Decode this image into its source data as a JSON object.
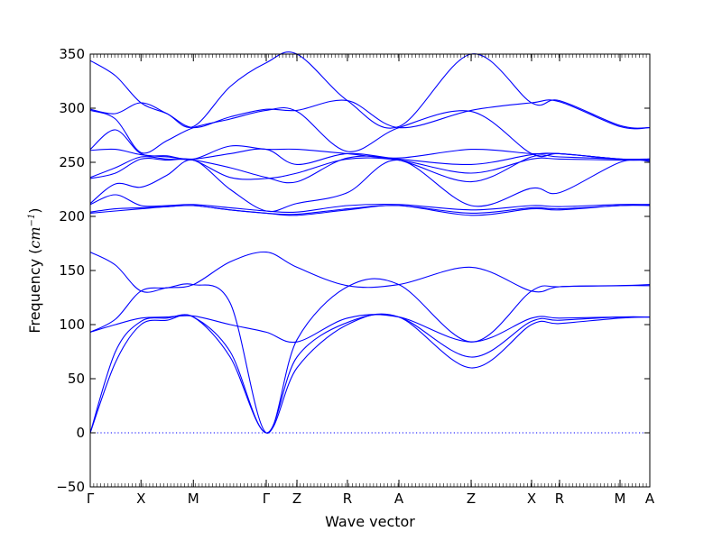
{
  "chart_data": {
    "type": "line",
    "title": "",
    "xlabel": "Wave vector",
    "ylabel_main": "Frequency (",
    "ylabel_unit_base": "cm",
    "ylabel_unit_exp": "−1",
    "ylabel_close": ")",
    "ylim": [
      -50,
      350
    ],
    "yticks": [
      -50,
      0,
      50,
      100,
      150,
      200,
      250,
      300,
      350
    ],
    "xlim": [
      0,
      1
    ],
    "grid": false,
    "line_color": "#0000ff",
    "kpoints": [
      {
        "label": "Γ",
        "x": 0.0
      },
      {
        "label": "X",
        "x": 0.0907
      },
      {
        "label": "M",
        "x": 0.1843
      },
      {
        "label": "Γ",
        "x": 0.3145
      },
      {
        "label": "Z",
        "x": 0.3694
      },
      {
        "label": "R",
        "x": 0.4596
      },
      {
        "label": "A",
        "x": 0.5516
      },
      {
        "label": "Z",
        "x": 0.6807
      },
      {
        "label": "X",
        "x": 0.7887
      },
      {
        "label": "R",
        "x": 0.8387
      },
      {
        "label": "M",
        "x": 0.9468
      },
      {
        "label": "A",
        "x": 1.0
      }
    ],
    "series": [
      {
        "x": [
          0.0,
          0.045,
          0.0907,
          0.137,
          0.1843,
          0.25,
          0.3145,
          0.3694,
          0.4596,
          0.5516,
          0.6807,
          0.7887,
          0.8387,
          0.9468,
          1.0
        ],
        "y": [
          0,
          65,
          100,
          104,
          107,
          70,
          0,
          60,
          100,
          107,
          60,
          100,
          101,
          106,
          107
        ]
      },
      {
        "x": [
          0.0,
          0.045,
          0.0907,
          0.137,
          0.1843,
          0.25,
          0.3145,
          0.3694,
          0.4596,
          0.5516,
          0.6807,
          0.7887,
          0.8387,
          0.9468,
          1.0
        ],
        "y": [
          0,
          75,
          103,
          106,
          107,
          75,
          0,
          70,
          102,
          107,
          70,
          103,
          104,
          107,
          107
        ]
      },
      {
        "x": [
          0.0,
          0.045,
          0.0907,
          0.137,
          0.1843,
          0.25,
          0.3145,
          0.3694,
          0.4596,
          0.5516,
          0.6807,
          0.7887,
          0.8387,
          0.9468,
          1.0
        ],
        "y": [
          93,
          100,
          106,
          107,
          108,
          100,
          93,
          84,
          106,
          107,
          84,
          106,
          106,
          107,
          107
        ]
      },
      {
        "x": [
          0.0,
          0.045,
          0.0907,
          0.137,
          0.1843,
          0.25,
          0.3145,
          0.3694,
          0.4596,
          0.5516,
          0.6807,
          0.7887,
          0.8387,
          0.9468,
          1.0
        ],
        "y": [
          93,
          105,
          131,
          134,
          137,
          120,
          0,
          86,
          135,
          137,
          84,
          131,
          135,
          136,
          137
        ]
      },
      {
        "x": [
          0.0,
          0.045,
          0.0907,
          0.137,
          0.1843,
          0.25,
          0.3145,
          0.3694,
          0.4596,
          0.5516,
          0.6807,
          0.7887,
          0.8387,
          0.9468,
          1.0
        ],
        "y": [
          167,
          155,
          131,
          134,
          137,
          158,
          167,
          153,
          136,
          137,
          153,
          131,
          135,
          136,
          136
        ]
      },
      {
        "x": [
          0.0,
          0.045,
          0.0907,
          0.137,
          0.1843,
          0.25,
          0.3145,
          0.3694,
          0.4596,
          0.5516,
          0.6807,
          0.7887,
          0.8387,
          0.9468,
          1.0
        ],
        "y": [
          203,
          205,
          207,
          209,
          210,
          206,
          203,
          201,
          206,
          210,
          201,
          207,
          206,
          210,
          210
        ]
      },
      {
        "x": [
          0.0,
          0.045,
          0.0907,
          0.137,
          0.1843,
          0.25,
          0.3145,
          0.3694,
          0.4596,
          0.5516,
          0.6807,
          0.7887,
          0.8387,
          0.9468,
          1.0
        ],
        "y": [
          204,
          207,
          208,
          209,
          210,
          206,
          203,
          202,
          207,
          210,
          203,
          208,
          207,
          210,
          211
        ]
      },
      {
        "x": [
          0.0,
          0.045,
          0.0907,
          0.137,
          0.1843,
          0.25,
          0.3145,
          0.3694,
          0.4596,
          0.5516,
          0.6807,
          0.7887,
          0.8387,
          0.9468,
          1.0
        ],
        "y": [
          211,
          220,
          210,
          210,
          211,
          208,
          205,
          204,
          210,
          211,
          206,
          210,
          209,
          211,
          211
        ]
      },
      {
        "x": [
          0.0,
          0.045,
          0.0907,
          0.137,
          0.1843,
          0.25,
          0.3145,
          0.3694,
          0.4596,
          0.5516,
          0.6807,
          0.7887,
          0.8387,
          0.9468,
          1.0
        ],
        "y": [
          212,
          230,
          227,
          238,
          252,
          225,
          205,
          212,
          222,
          252,
          210,
          226,
          222,
          250,
          251
        ]
      },
      {
        "x": [
          0.0,
          0.045,
          0.0907,
          0.137,
          0.1843,
          0.25,
          0.3145,
          0.3694,
          0.4596,
          0.5516,
          0.6807,
          0.7887,
          0.8387,
          0.9468,
          1.0
        ],
        "y": [
          235,
          240,
          253,
          252,
          252,
          236,
          235,
          240,
          253,
          252,
          240,
          253,
          253,
          252,
          252
        ]
      },
      {
        "x": [
          0.0,
          0.045,
          0.0907,
          0.137,
          0.1843,
          0.25,
          0.3145,
          0.3694,
          0.4596,
          0.5516,
          0.6807,
          0.7887,
          0.8387,
          0.9468,
          1.0
        ],
        "y": [
          236,
          245,
          255,
          253,
          252,
          245,
          236,
          232,
          254,
          252,
          232,
          255,
          255,
          253,
          253
        ]
      },
      {
        "x": [
          0.0,
          0.045,
          0.0907,
          0.137,
          0.1843,
          0.25,
          0.3145,
          0.3694,
          0.4596,
          0.5516,
          0.6807,
          0.7887,
          0.8387,
          0.9468,
          1.0
        ],
        "y": [
          261,
          262,
          257,
          255,
          253,
          258,
          262,
          248,
          258,
          253,
          248,
          257,
          258,
          253,
          253
        ]
      },
      {
        "x": [
          0.0,
          0.045,
          0.0907,
          0.137,
          0.1843,
          0.25,
          0.3145,
          0.3694,
          0.4596,
          0.5516,
          0.6807,
          0.7887,
          0.8387,
          0.9468,
          1.0
        ],
        "y": [
          262,
          280,
          258,
          256,
          253,
          265,
          262,
          262,
          258,
          254,
          262,
          258,
          258,
          253,
          253
        ]
      },
      {
        "x": [
          0.0,
          0.045,
          0.0907,
          0.137,
          0.1843,
          0.25,
          0.3145,
          0.3694,
          0.4596,
          0.5516,
          0.6807,
          0.7887,
          0.8387,
          0.9468,
          1.0
        ],
        "y": [
          298,
          290,
          259,
          270,
          282,
          290,
          298,
          297,
          260,
          282,
          297,
          258,
          258,
          253,
          253
        ]
      },
      {
        "x": [
          0.0,
          0.045,
          0.0907,
          0.137,
          0.1843,
          0.25,
          0.3145,
          0.3694,
          0.4596,
          0.5516,
          0.6807,
          0.7887,
          0.8387,
          0.9468,
          1.0
        ],
        "y": [
          299,
          295,
          305,
          295,
          282,
          292,
          299,
          298,
          307,
          282,
          298,
          305,
          306,
          283,
          282
        ]
      },
      {
        "x": [
          0.0,
          0.045,
          0.0907,
          0.137,
          0.1843,
          0.25,
          0.3145,
          0.3694,
          0.4596,
          0.5516,
          0.6807,
          0.7887,
          0.8387,
          0.9468,
          1.0
        ],
        "y": [
          344,
          330,
          305,
          295,
          283,
          320,
          342,
          350,
          307,
          283,
          350,
          305,
          307,
          284,
          282
        ]
      }
    ]
  }
}
